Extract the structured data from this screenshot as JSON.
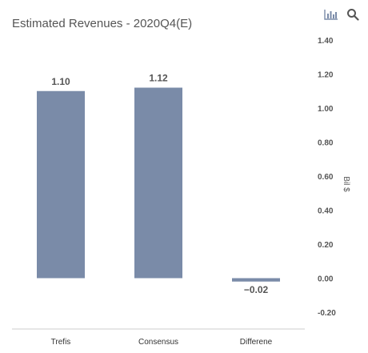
{
  "toolbar": {
    "chart_type_icon": "bar-chart-icon",
    "search_icon": "search-icon",
    "icon_color": "#7a8ba8"
  },
  "chart_data": {
    "type": "bar",
    "title": "Estimated Revenues - 2020Q4(E)",
    "categories": [
      "Trefis",
      "Consensus",
      "Differene"
    ],
    "values": [
      1.1,
      1.12,
      -0.02
    ],
    "data_labels": [
      "1.10",
      "1.12",
      "−0.02"
    ],
    "ylabel": "Bil $",
    "ylim": [
      -0.2,
      1.4
    ],
    "yticks": [
      "1.40",
      "1.20",
      "1.00",
      "0.80",
      "0.60",
      "0.40",
      "0.20",
      "0.00",
      "-0.20"
    ],
    "ytick_values": [
      1.4,
      1.2,
      1.0,
      0.8,
      0.6,
      0.4,
      0.2,
      0.0,
      -0.2
    ],
    "y_axis_position": "right",
    "grid": false,
    "bar_color": "#7a8ba8"
  }
}
